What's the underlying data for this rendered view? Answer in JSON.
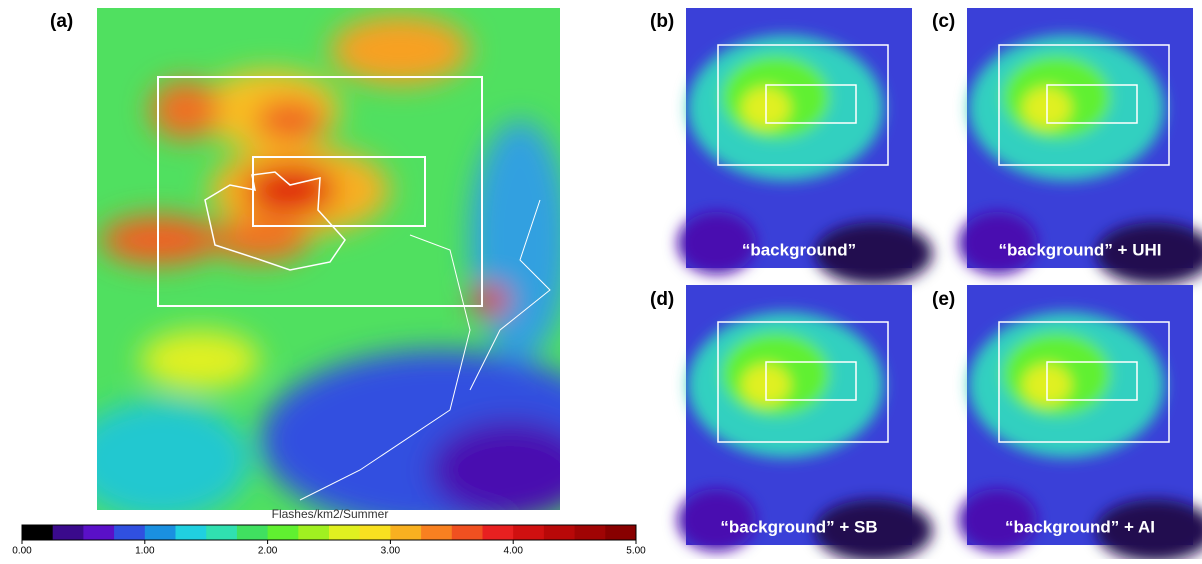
{
  "panels": [
    {
      "label": "(a)"
    },
    {
      "label": "(b)",
      "caption": "“background”"
    },
    {
      "label": "(c)",
      "caption": "“background” + UHI"
    },
    {
      "label": "(d)",
      "caption": "“background” + SB"
    },
    {
      "label": "(e)",
      "caption": "“background” + AI"
    }
  ],
  "colorbar": {
    "title": "Flashes/km2/Summer",
    "lim": [
      0,
      5
    ],
    "ticks": [
      {
        "value": 0,
        "label": "0.00"
      },
      {
        "value": 1,
        "label": "1.00"
      },
      {
        "value": 2,
        "label": "2.00"
      },
      {
        "value": 3,
        "label": "3.00"
      },
      {
        "value": 4,
        "label": "4.00"
      },
      {
        "value": 5,
        "label": "5.00"
      }
    ],
    "colors": [
      "#000000",
      "#3a0a8c",
      "#5a10c8",
      "#3050e0",
      "#1a90e0",
      "#20d0e0",
      "#30e0b0",
      "#40e060",
      "#60f030",
      "#a0f020",
      "#e0f020",
      "#f8e020",
      "#f8b020",
      "#f88020",
      "#f05020",
      "#e82020",
      "#d01010",
      "#b80808",
      "#a00404",
      "#880000"
    ]
  }
}
